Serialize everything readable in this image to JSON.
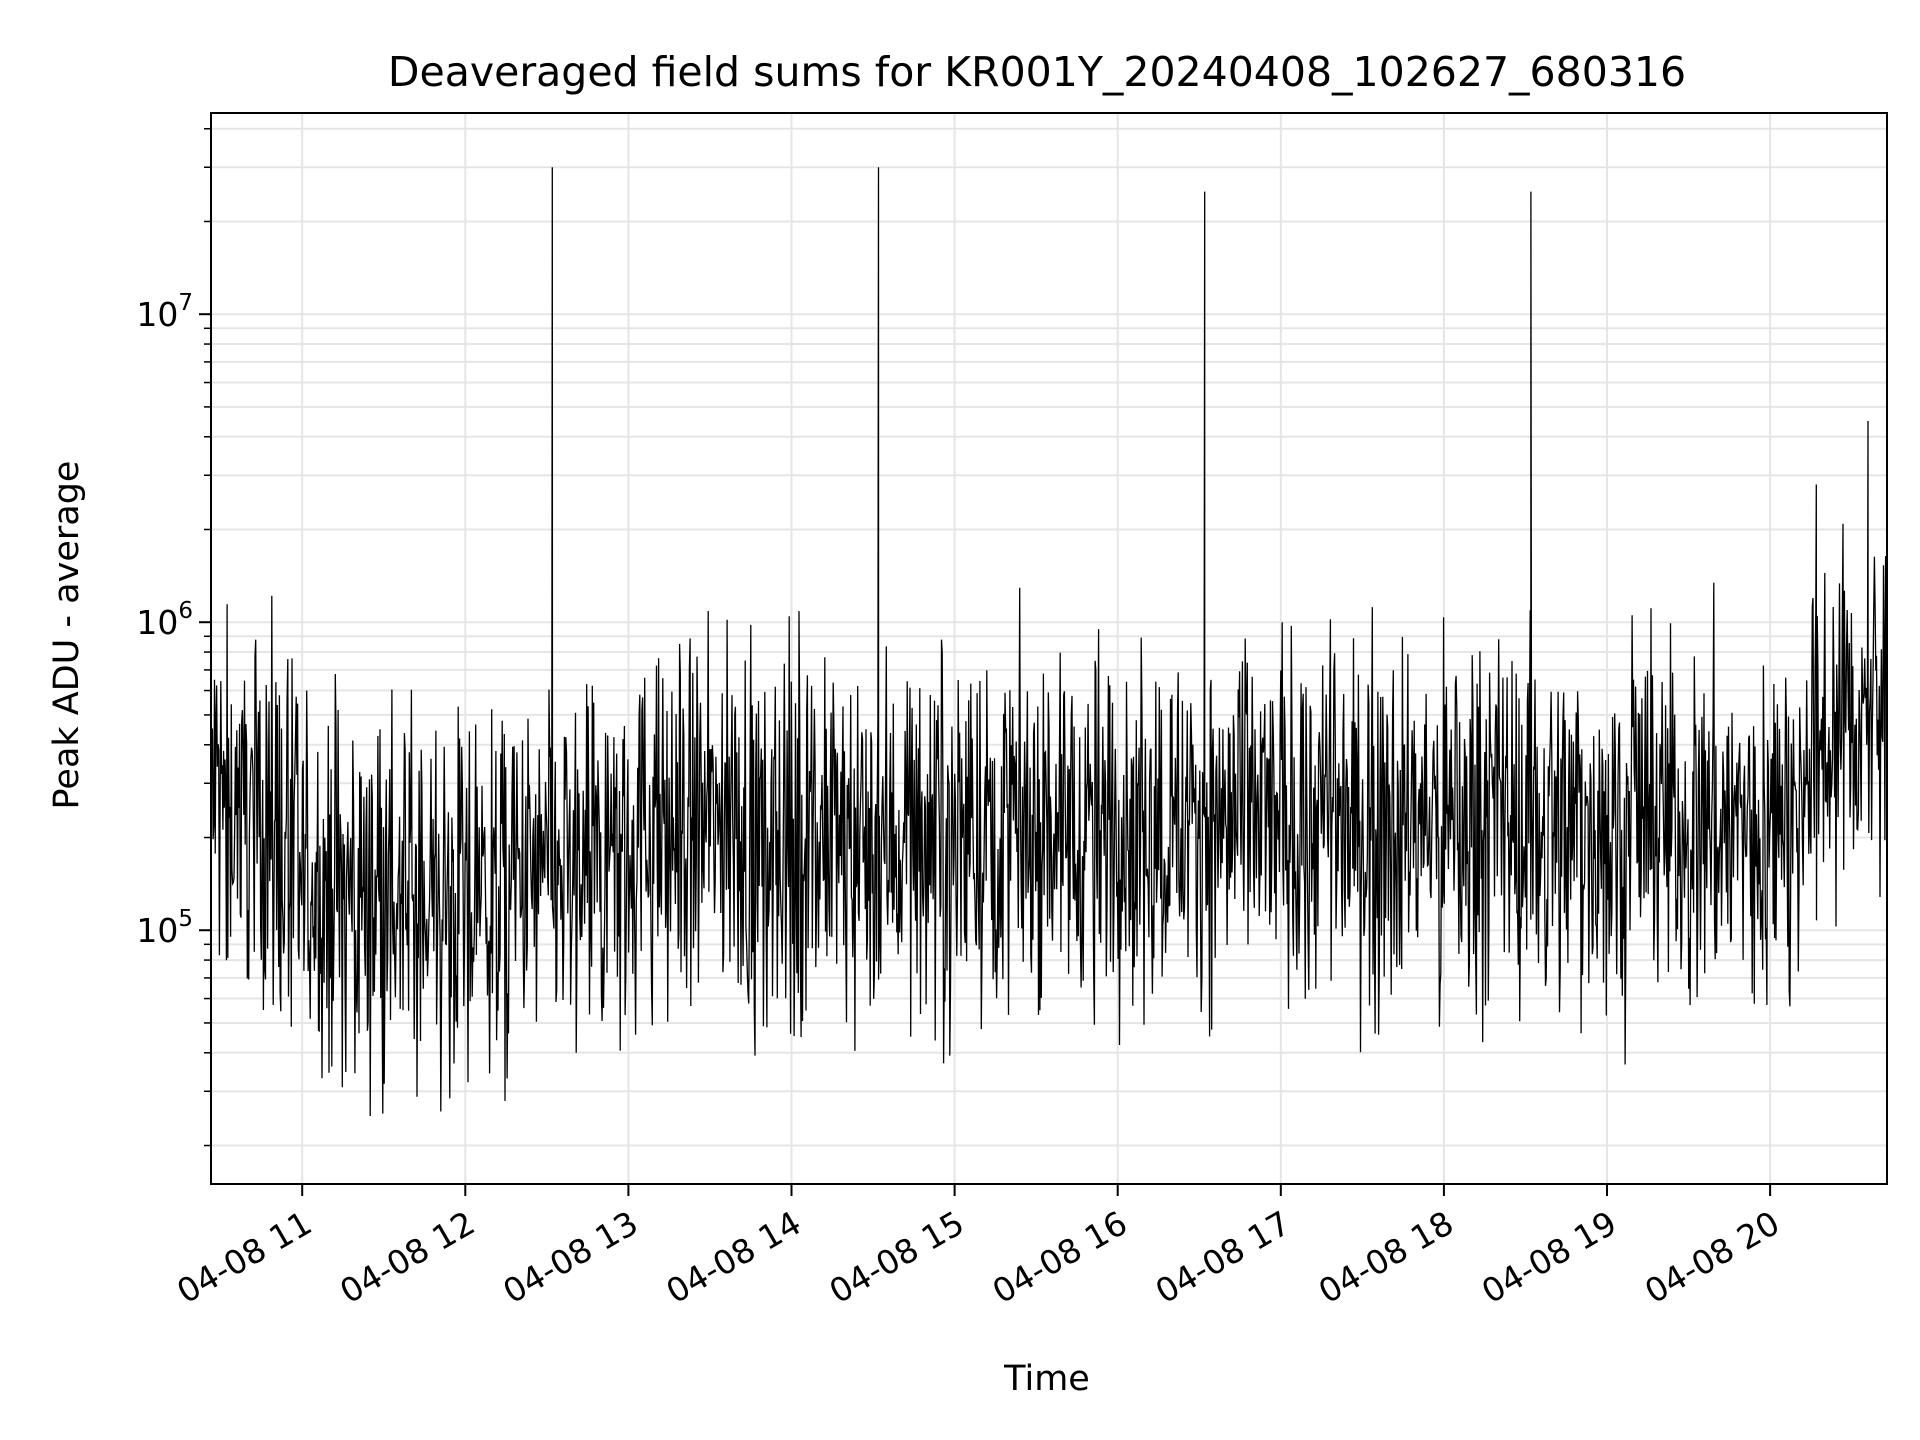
{
  "chart_data": {
    "type": "line",
    "title": "Deaveraged field sums for KR001Y_20240408_102627_680316",
    "xlabel": "Time",
    "ylabel": "Peak ADU - average",
    "x_tick_labels": [
      "04-08 11",
      "04-08 12",
      "04-08 13",
      "04-08 14",
      "04-08 15",
      "04-08 16",
      "04-08 17",
      "04-08 18",
      "04-08 19",
      "04-08 20"
    ],
    "x_tick_values": [
      "2024-04-08T11:00",
      "2024-04-08T12:00",
      "2024-04-08T13:00",
      "2024-04-08T14:00",
      "2024-04-08T15:00",
      "2024-04-08T16:00",
      "2024-04-08T17:00",
      "2024-04-08T18:00",
      "2024-04-08T19:00",
      "2024-04-08T20:00"
    ],
    "xlim": [
      "2024-04-08T10:26:27",
      "2024-04-08T20:43:00"
    ],
    "y_scale": "log",
    "ylim": [
      15000,
      45000000
    ],
    "y_tick_values": [
      100000,
      1000000,
      10000000
    ],
    "y_tick_labels": [
      {
        "base": "10",
        "exp": "5"
      },
      {
        "base": "10",
        "exp": "6"
      },
      {
        "base": "10",
        "exp": "7"
      }
    ],
    "grid": true,
    "line_color": "#000000",
    "grid_color": "#e5e5e5",
    "series": [
      {
        "values_note_free": true,
        "x": [
          "2024-04-08T10:27",
          "2024-04-08T10:45",
          "2024-04-08T11:00",
          "2024-04-08T11:30",
          "2024-04-08T12:00",
          "2024-04-08T12:30",
          "2024-04-08T12:32",
          "2024-04-08T12:34",
          "2024-04-08T12:50",
          "2024-04-08T13:00",
          "2024-04-08T13:30",
          "2024-04-08T14:00",
          "2024-04-08T14:30",
          "2024-04-08T14:32",
          "2024-04-08T14:34",
          "2024-04-08T15:00",
          "2024-04-08T15:30",
          "2024-04-08T16:00",
          "2024-04-08T16:30",
          "2024-04-08T16:32",
          "2024-04-08T16:34",
          "2024-04-08T17:00",
          "2024-04-08T17:30",
          "2024-04-08T18:00",
          "2024-04-08T18:30",
          "2024-04-08T18:32",
          "2024-04-08T18:34",
          "2024-04-08T19:00",
          "2024-04-08T19:30",
          "2024-04-08T20:00",
          "2024-04-08T20:10",
          "2024-04-08T20:17",
          "2024-04-08T20:20",
          "2024-04-08T20:30",
          "2024-04-08T20:36",
          "2024-04-08T20:42"
        ],
        "y": [
          280000,
          250000,
          140000,
          130000,
          120000,
          150000,
          30000000,
          150000,
          150000,
          200000,
          220000,
          190000,
          200000,
          30000000,
          200000,
          210000,
          220000,
          220000,
          230000,
          25000000,
          220000,
          230000,
          230000,
          220000,
          240000,
          25000000,
          230000,
          220000,
          230000,
          220000,
          210000,
          2800000,
          450000,
          480000,
          4500000,
          520000
        ]
      }
    ]
  }
}
